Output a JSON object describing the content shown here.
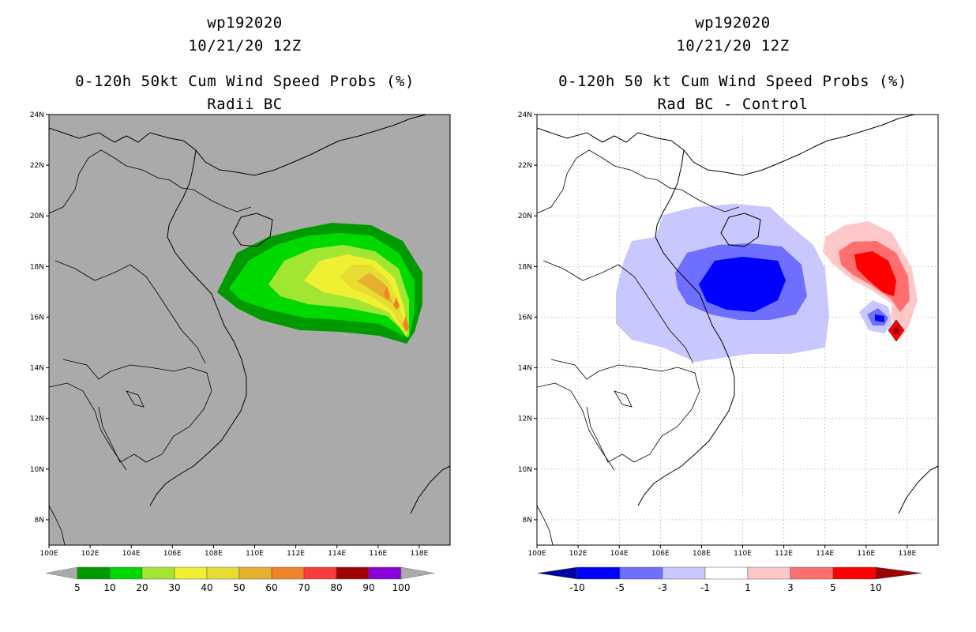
{
  "left_panel": {
    "title_line1": "wp192020",
    "title_line2": "10/21/20 12Z",
    "title_line3": "0-120h 50kt Cum Wind Speed Probs (%)",
    "title_line4": "Radii BC",
    "background_color": "#aaaaaa",
    "colorbar": {
      "labels": [
        "5",
        "10",
        "20",
        "30",
        "40",
        "50",
        "60",
        "70",
        "80",
        "90",
        "100"
      ],
      "colors": [
        "#009a00",
        "#00d900",
        "#a0e632",
        "#f0f032",
        "#e6dc32",
        "#e6af2d",
        "#f08228",
        "#fa3c3c",
        "#a00000",
        "#8c00d9"
      ]
    }
  },
  "right_panel": {
    "title_line1": "wp192020",
    "title_line2": "10/21/20 12Z",
    "title_line3": "0-120h 50 kt Cum Wind Speed Probs (%)",
    "title_line4": "Rad BC - Control",
    "background_color": "#ffffff",
    "colorbar": {
      "labels": [
        "-10",
        "-5",
        "-3",
        "-1",
        "1",
        "3",
        "5",
        "10"
      ],
      "colors": [
        "#0000a0",
        "#0000ff",
        "#6e6eff",
        "#c8c8ff",
        "#ffffff",
        "#ffc8c8",
        "#ff6e6e",
        "#ff0000",
        "#a00000"
      ]
    }
  },
  "axes": {
    "lat_labels": [
      "24N",
      "22N",
      "20N",
      "18N",
      "16N",
      "14N",
      "12N",
      "10N",
      "8N"
    ],
    "lon_labels": [
      "100E",
      "102E",
      "104E",
      "106E",
      "108E",
      "110E",
      "112E",
      "114E",
      "116E",
      "118E"
    ]
  }
}
